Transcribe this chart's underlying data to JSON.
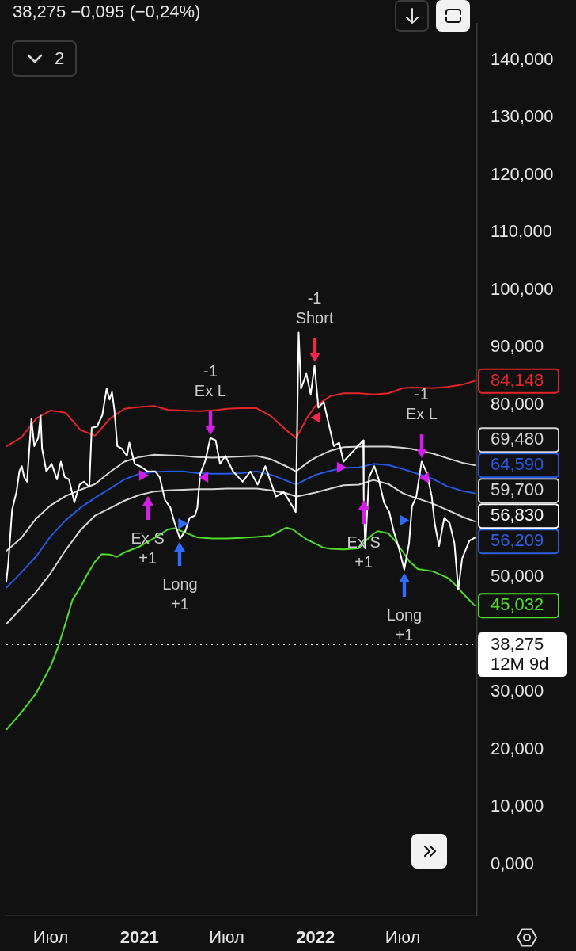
{
  "chart_data": {
    "type": "line",
    "title": "38,275 −0,095 (−0,24%)",
    "xlim": [
      "2020-03-31",
      "2022-12-02"
    ],
    "xticks": [
      {
        "value": "2020-07-01",
        "label": "Июл"
      },
      {
        "value": "2021-01-01",
        "label": "2021"
      },
      {
        "value": "2021-07-01",
        "label": "Июл"
      },
      {
        "value": "2022-01-01",
        "label": "2022"
      },
      {
        "value": "2022-07-01",
        "label": "Июл"
      }
    ],
    "ylim": [
      -8.9,
      146.3
    ],
    "yticks": [
      {
        "value": 0,
        "label": "0,000"
      },
      {
        "value": 10,
        "label": "10,000"
      },
      {
        "value": 20,
        "label": "20,000"
      },
      {
        "value": 30,
        "label": "30,000"
      },
      {
        "value": 50,
        "label": "50,000"
      },
      {
        "value": 80,
        "label": "80,000"
      },
      {
        "value": 90,
        "label": "90,000"
      },
      {
        "value": 100,
        "label": "100,000"
      },
      {
        "value": 110,
        "label": "110,000"
      },
      {
        "value": 120,
        "label": "120,000"
      },
      {
        "value": 130,
        "label": "130,000"
      },
      {
        "value": 140,
        "label": "140,000"
      }
    ],
    "series": [
      {
        "color": "#ffffff",
        "x": [
          "2020-03-31",
          "2020-04-04",
          "2020-04-12",
          "2020-04-21",
          "2020-04-27",
          "2020-05-02",
          "2020-05-07",
          "2020-05-13",
          "2020-05-22",
          "2020-05-28",
          "2020-06-05",
          "2020-06-10",
          "2020-06-13",
          "2020-06-22",
          "2020-07-03",
          "2020-07-14",
          "2020-07-22",
          "2020-07-30",
          "2020-08-08",
          "2020-08-19",
          "2020-08-30",
          "2020-09-08",
          "2020-09-19",
          "2020-09-24",
          "2020-10-05",
          "2020-10-16",
          "2020-10-25",
          "2020-10-31",
          "2020-11-05",
          "2020-11-10",
          "2020-11-16",
          "2020-11-25",
          "2020-12-06",
          "2020-12-11",
          "2020-12-22",
          "2021-01-02",
          "2021-01-18",
          "2021-02-03",
          "2021-02-12",
          "2021-02-23",
          "2021-03-06",
          "2021-03-15",
          "2021-03-26",
          "2021-04-06",
          "2021-04-15",
          "2021-04-26",
          "2021-05-01",
          "2021-05-07",
          "2021-05-17",
          "2021-05-28",
          "2021-06-08",
          "2021-06-17",
          "2021-06-28",
          "2021-07-14",
          "2021-08-03",
          "2021-08-19",
          "2021-09-03",
          "2021-09-19",
          "2021-09-30",
          "2021-10-11",
          "2021-10-27",
          "2021-11-16",
          "2021-11-21",
          "2021-11-24",
          "2021-11-27",
          "2021-12-02",
          "2021-12-13",
          "2021-12-22",
          "2021-12-30",
          "2022-01-07",
          "2022-01-18",
          "2022-01-29",
          "2022-02-08",
          "2022-02-19",
          "2022-02-28",
          "2022-04-10",
          "2022-04-11",
          "2022-04-14",
          "2022-04-22",
          "2022-05-03",
          "2022-05-12",
          "2022-05-23",
          "2022-06-03",
          "2022-06-12",
          "2022-06-23",
          "2022-07-04",
          "2022-07-14",
          "2022-07-20",
          "2022-07-29",
          "2022-08-09",
          "2022-08-20",
          "2022-08-30",
          "2022-09-05",
          "2022-09-14",
          "2022-09-25",
          "2022-10-06",
          "2022-10-16",
          "2022-10-24",
          "2022-11-01",
          "2022-11-16",
          "2022-11-27"
        ],
        "values": [
          49.2,
          52.3,
          61.7,
          64.8,
          68.4,
          69.3,
          67.4,
          66.6,
          77.5,
          72.8,
          74.2,
          78.1,
          72.4,
          68.4,
          69.7,
          67.0,
          70.1,
          67.4,
          67.0,
          63.0,
          66.1,
          66.6,
          65.7,
          76.0,
          76.2,
          78.2,
          82.8,
          80.9,
          82.2,
          79.1,
          72.8,
          72.4,
          71.1,
          73.4,
          69.7,
          69.3,
          68.4,
          68.4,
          67.4,
          63.4,
          62.1,
          59.4,
          56.7,
          58.0,
          60.3,
          60.7,
          62.1,
          68.0,
          70.1,
          74.2,
          73.8,
          69.7,
          71.1,
          68.4,
          66.6,
          68.4,
          66.1,
          69.3,
          66.6,
          64.0,
          64.8,
          62.1,
          61.3,
          76.4,
          92.6,
          82.8,
          85.4,
          81.8,
          86.8,
          79.5,
          80.5,
          76.4,
          72.8,
          73.4,
          70.1,
          73.8,
          64.0,
          55.0,
          67.4,
          69.3,
          67.0,
          63.0,
          61.3,
          58.0,
          55.0,
          51.3,
          55.9,
          62.3,
          64.0,
          70.1,
          68.1,
          64.0,
          59.4,
          55.4,
          60.3,
          59.4,
          55.9,
          47.8,
          53.2,
          56.3,
          56.83
        ],
        "value_labels": [
          null,
          null,
          null,
          null,
          null,
          null,
          null,
          null,
          null,
          null,
          null,
          null,
          null,
          null,
          null,
          null,
          null,
          null,
          null,
          null,
          null,
          null,
          null,
          null,
          null,
          null,
          null,
          null,
          null,
          null,
          null,
          null,
          null,
          null,
          null,
          null,
          null,
          null,
          null,
          null,
          null,
          null,
          null,
          null,
          null,
          null,
          null,
          null,
          null,
          null,
          null,
          null,
          null,
          null,
          null,
          null,
          null,
          null,
          null,
          null,
          null,
          null,
          null,
          null,
          null,
          null,
          null,
          null,
          null,
          null,
          null,
          null,
          null,
          null,
          null,
          null,
          null,
          null,
          null,
          null,
          null,
          null,
          null,
          null,
          null,
          null,
          null,
          null,
          null,
          null,
          null,
          null,
          null,
          null,
          null,
          null,
          null,
          null,
          null,
          null,
          "56,830"
        ]
      },
      {
        "color": "#e3242b",
        "x": [
          "2020-04-01",
          "2020-05-01",
          "2020-06-01",
          "2020-07-01",
          "2020-08-01",
          "2020-09-01",
          "2020-10-01",
          "2020-11-01",
          "2020-12-01",
          "2021-01-01",
          "2021-02-01",
          "2021-03-01",
          "2021-04-01",
          "2021-05-01",
          "2021-06-01",
          "2021-07-01",
          "2021-08-01",
          "2021-09-01",
          "2021-10-01",
          "2021-11-01",
          "2021-11-22",
          "2021-12-15",
          "2022-01-01",
          "2022-02-01",
          "2022-02-28",
          "2022-04-01",
          "2022-05-01",
          "2022-06-01",
          "2022-07-01",
          "2022-07-20",
          "2022-09-01",
          "2022-10-01",
          "2022-11-01",
          "2022-11-27"
        ],
        "values": [
          72.8,
          74.3,
          77.6,
          79.0,
          78.6,
          75.6,
          74.6,
          77.6,
          79.3,
          79.6,
          79.8,
          79.1,
          79.0,
          78.9,
          79.0,
          79.3,
          79.4,
          79.4,
          78.0,
          75.6,
          74.2,
          77.8,
          79.8,
          81.5,
          82.0,
          82.0,
          81.8,
          82.0,
          82.9,
          83.0,
          82.9,
          83.1,
          83.5,
          84.148
        ],
        "value_labels": [
          null,
          null,
          null,
          null,
          null,
          null,
          null,
          null,
          null,
          null,
          null,
          null,
          null,
          null,
          null,
          null,
          null,
          null,
          null,
          null,
          null,
          null,
          null,
          null,
          null,
          null,
          null,
          null,
          null,
          null,
          null,
          null,
          null,
          "84,148"
        ]
      },
      {
        "color": "#d4d4d4",
        "x": [
          "2020-04-01",
          "2020-05-01",
          "2020-06-01",
          "2020-07-01",
          "2020-08-01",
          "2020-09-01",
          "2020-10-01",
          "2020-11-01",
          "2020-12-01",
          "2021-01-01",
          "2021-02-01",
          "2021-03-01",
          "2021-04-01",
          "2021-05-01",
          "2021-06-01",
          "2021-07-01",
          "2021-08-01",
          "2021-09-01",
          "2021-10-01",
          "2021-11-01",
          "2021-11-22",
          "2021-12-15",
          "2022-01-01",
          "2022-02-01",
          "2022-02-28",
          "2022-04-01",
          "2022-05-01",
          "2022-06-01",
          "2022-07-01",
          "2022-07-20",
          "2022-09-01",
          "2022-10-01",
          "2022-11-01",
          "2022-11-27"
        ],
        "values": [
          54.6,
          56.8,
          60.2,
          62.5,
          64.1,
          65.2,
          66.2,
          68.3,
          70.1,
          70.9,
          71.3,
          71.2,
          71.1,
          70.9,
          70.8,
          70.9,
          71.0,
          71.1,
          70.5,
          69.3,
          68.4,
          69.9,
          70.8,
          72.0,
          72.6,
          72.7,
          72.7,
          72.7,
          72.5,
          72.3,
          71.5,
          70.7,
          69.9,
          69.48
        ],
        "value_labels": [
          null,
          null,
          null,
          null,
          null,
          null,
          null,
          null,
          null,
          null,
          null,
          null,
          null,
          null,
          null,
          null,
          null,
          null,
          null,
          null,
          null,
          null,
          null,
          null,
          null,
          null,
          null,
          null,
          null,
          null,
          null,
          null,
          null,
          "69,480"
        ]
      },
      {
        "color": "#2458e6",
        "x": [
          "2020-04-01",
          "2020-05-01",
          "2020-06-01",
          "2020-07-01",
          "2020-08-01",
          "2020-09-01",
          "2020-10-01",
          "2020-11-01",
          "2020-12-01",
          "2021-01-01",
          "2021-02-01",
          "2021-03-01",
          "2021-04-01",
          "2021-05-01",
          "2021-06-01",
          "2021-07-01",
          "2021-08-01",
          "2021-09-01",
          "2021-10-01",
          "2021-11-01",
          "2021-11-22",
          "2021-12-15",
          "2022-01-01",
          "2022-02-01",
          "2022-02-28",
          "2022-04-01",
          "2022-05-01",
          "2022-06-01",
          "2022-07-01",
          "2022-07-20",
          "2022-09-01",
          "2022-10-01",
          "2022-11-01",
          "2022-11-27"
        ],
        "values": [
          48.2,
          50.8,
          53.6,
          57.1,
          59.9,
          62.1,
          63.8,
          65.4,
          67.0,
          68.0,
          68.3,
          68.4,
          68.4,
          68.1,
          68.0,
          68.0,
          68.1,
          68.4,
          67.8,
          66.8,
          66.1,
          67.1,
          67.8,
          68.5,
          69.0,
          69.1,
          69.7,
          69.5,
          68.8,
          68.3,
          67.1,
          65.8,
          65.0,
          64.59
        ],
        "value_labels": [
          null,
          null,
          null,
          null,
          null,
          null,
          null,
          null,
          null,
          null,
          null,
          null,
          null,
          null,
          null,
          null,
          null,
          null,
          null,
          null,
          null,
          null,
          null,
          null,
          null,
          null,
          null,
          null,
          null,
          null,
          null,
          null,
          null,
          "64,590"
        ]
      },
      {
        "color": "#d4d4d4",
        "x": [
          "2020-04-01",
          "2020-05-01",
          "2020-06-01",
          "2020-07-01",
          "2020-08-01",
          "2020-09-01",
          "2020-10-01",
          "2020-11-01",
          "2020-12-01",
          "2021-01-01",
          "2021-02-01",
          "2021-03-01",
          "2021-04-01",
          "2021-05-01",
          "2021-06-01",
          "2021-07-01",
          "2021-08-01",
          "2021-09-01",
          "2021-10-01",
          "2021-11-01",
          "2021-11-22",
          "2021-12-15",
          "2022-01-01",
          "2022-02-01",
          "2022-02-28",
          "2022-04-01",
          "2022-05-01",
          "2022-06-01",
          "2022-07-01",
          "2022-07-20",
          "2022-09-01",
          "2022-10-01",
          "2022-11-01",
          "2022-11-27"
        ],
        "values": [
          41.9,
          44.6,
          47.4,
          50.7,
          54.7,
          58.2,
          60.7,
          62.0,
          63.3,
          64.3,
          64.9,
          65.1,
          65.2,
          65.3,
          65.3,
          65.4,
          65.4,
          65.4,
          65.1,
          64.6,
          64.0,
          64.4,
          64.7,
          65.4,
          66.0,
          66.1,
          66.9,
          66.2,
          64.6,
          64.0,
          62.8,
          61.7,
          60.5,
          59.7
        ],
        "value_labels": [
          null,
          null,
          null,
          null,
          null,
          null,
          null,
          null,
          null,
          null,
          null,
          null,
          null,
          null,
          null,
          null,
          null,
          null,
          null,
          null,
          null,
          null,
          null,
          null,
          null,
          null,
          null,
          null,
          null,
          null,
          null,
          null,
          null,
          "59,700"
        ]
      },
      {
        "color": "#4fdc2a",
        "x": [
          "2020-04-01",
          "2020-05-01",
          "2020-06-01",
          "2020-07-01",
          "2020-07-15",
          "2020-08-01",
          "2020-08-15",
          "2020-09-01",
          "2020-09-15",
          "2020-10-01",
          "2020-10-15",
          "2020-11-01",
          "2020-11-15",
          "2020-12-01",
          "2021-01-01",
          "2021-02-01",
          "2021-03-01",
          "2021-03-15",
          "2021-04-01",
          "2021-05-01",
          "2021-06-01",
          "2021-07-01",
          "2021-08-01",
          "2021-09-01",
          "2021-10-01",
          "2021-11-01",
          "2021-11-15",
          "2021-12-01",
          "2021-12-15",
          "2022-01-01",
          "2022-01-15",
          "2022-02-01",
          "2022-02-28",
          "2022-04-01",
          "2022-04-15",
          "2022-05-01",
          "2022-05-10",
          "2022-06-01",
          "2022-06-15",
          "2022-07-01",
          "2022-07-15",
          "2022-08-01",
          "2022-09-01",
          "2022-10-01",
          "2022-10-15",
          "2022-11-01",
          "2022-11-27"
        ],
        "values": [
          23.5,
          26.4,
          29.8,
          34.5,
          37.5,
          42.0,
          46.0,
          48.3,
          50.5,
          52.7,
          54.0,
          53.9,
          53.5,
          54.3,
          55.3,
          56.8,
          58.3,
          58.5,
          57.9,
          56.9,
          56.7,
          56.7,
          56.8,
          57.0,
          57.2,
          58.6,
          58.3,
          57.3,
          56.5,
          55.8,
          55.2,
          54.9,
          54.8,
          55.0,
          56.3,
          57.5,
          58.0,
          57.6,
          56.3,
          54.4,
          52.7,
          51.4,
          51.0,
          49.9,
          48.9,
          47.3,
          45.032
        ],
        "value_labels": [
          null,
          null,
          null,
          null,
          null,
          null,
          null,
          null,
          null,
          null,
          null,
          null,
          null,
          null,
          null,
          null,
          null,
          null,
          null,
          null,
          null,
          null,
          null,
          null,
          null,
          null,
          null,
          null,
          null,
          null,
          null,
          null,
          null,
          null,
          null,
          null,
          null,
          null,
          null,
          null,
          null,
          null,
          null,
          null,
          null,
          null,
          "45,032"
        ]
      },
      {
        "type": "scatter",
        "marker": "triangle",
        "x": [
          "2021-01-07",
          "2021-03-29",
          "2022-02-21",
          "2022-07-01"
        ],
        "values": [
          67.7,
          59.3,
          69.1,
          59.9
        ],
        "colors": [
          "#d21ee6",
          "#2f6bff",
          "#d21ee6",
          "#2f6bff"
        ]
      },
      {
        "type": "scatter",
        "marker": "triangle",
        "x": [
          "2021-05-17",
          "2022-01-04",
          "2022-08-17"
        ],
        "values": [
          67.4,
          77.8,
          67.3
        ],
        "colors": [
          "#d21ee6",
          "#f0284a",
          "#d21ee6"
        ]
      }
    ],
    "ref_lines": [
      {
        "axis": "y",
        "value": 38.275,
        "label": "38,275\n12M 9d",
        "color": "#ffffff",
        "line_style": "dotted"
      }
    ],
    "annotations": [
      {
        "text": "Ex S\n+1",
        "x": "2021-01-18",
        "y": 64.6
      },
      {
        "text": "Long\n+1",
        "x": "2021-03-26",
        "y": 56.7
      },
      {
        "text": "-1\nEx L",
        "x": "2021-05-28",
        "y": 74.2
      },
      {
        "text": "-1\nShort",
        "x": "2021-12-30",
        "y": 86.8
      },
      {
        "text": "Ex S\n+1",
        "x": "2022-04-11",
        "y": 64.0
      },
      {
        "text": "Long\n+1",
        "x": "2022-07-04",
        "y": 51.3
      },
      {
        "text": "-1\nEx L",
        "x": "2022-08-09",
        "y": 70.1
      },
      {
        "text": "56,209",
        "x": "2022-11-27",
        "y": 56.209
      },
      "2"
    ]
  }
}
